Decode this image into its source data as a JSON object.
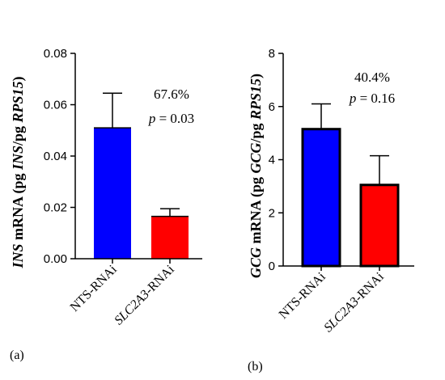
{
  "chart_data": [
    {
      "type": "bar",
      "panel_label": "(a)",
      "categories": [
        {
          "text": "NTS-RNAi",
          "italic": ""
        },
        {
          "text": "-RNAi",
          "italic": "SLC2A3"
        }
      ],
      "values": [
        0.051,
        0.0165
      ],
      "errors": [
        0.0135,
        0.003
      ],
      "colors": [
        "#0000ff",
        "#ff0000"
      ],
      "ylim": [
        0,
        0.08
      ],
      "yticks": [
        "0.00",
        "0.02",
        "0.04",
        "0.06",
        "0.08"
      ],
      "ylabel_parts": [
        {
          "t": "INS",
          "i": true
        },
        {
          "t": " mRNA (pg ",
          "i": false
        },
        {
          "t": "INS",
          "i": true
        },
        {
          "t": "/pg ",
          "i": false
        },
        {
          "t": "RPS15",
          "i": true
        },
        {
          "t": ")",
          "i": false
        }
      ],
      "annotation": {
        "percent": "67.6%",
        "p_symbol": "p",
        "p_value": " = 0.03"
      }
    },
    {
      "type": "bar",
      "panel_label": "(b)",
      "categories": [
        {
          "text": "NTS-RNAi",
          "italic": ""
        },
        {
          "text": "-RNAi",
          "italic": "SLC2A3"
        }
      ],
      "values": [
        5.15,
        3.05
      ],
      "errors": [
        0.95,
        1.1
      ],
      "colors": [
        "#0000ff",
        "#ff0000"
      ],
      "ylim": [
        0,
        8
      ],
      "yticks": [
        "0",
        "2",
        "4",
        "6",
        "8"
      ],
      "ylabel_parts": [
        {
          "t": "GCG",
          "i": true
        },
        {
          "t": " mRNA (pg ",
          "i": false
        },
        {
          "t": "GCG",
          "i": true
        },
        {
          "t": "/pg ",
          "i": false
        },
        {
          "t": "RPS15",
          "i": true
        },
        {
          "t": ")",
          "i": false
        }
      ],
      "annotation": {
        "percent": "40.4%",
        "p_symbol": "p",
        "p_value": " = 0.16"
      }
    }
  ]
}
